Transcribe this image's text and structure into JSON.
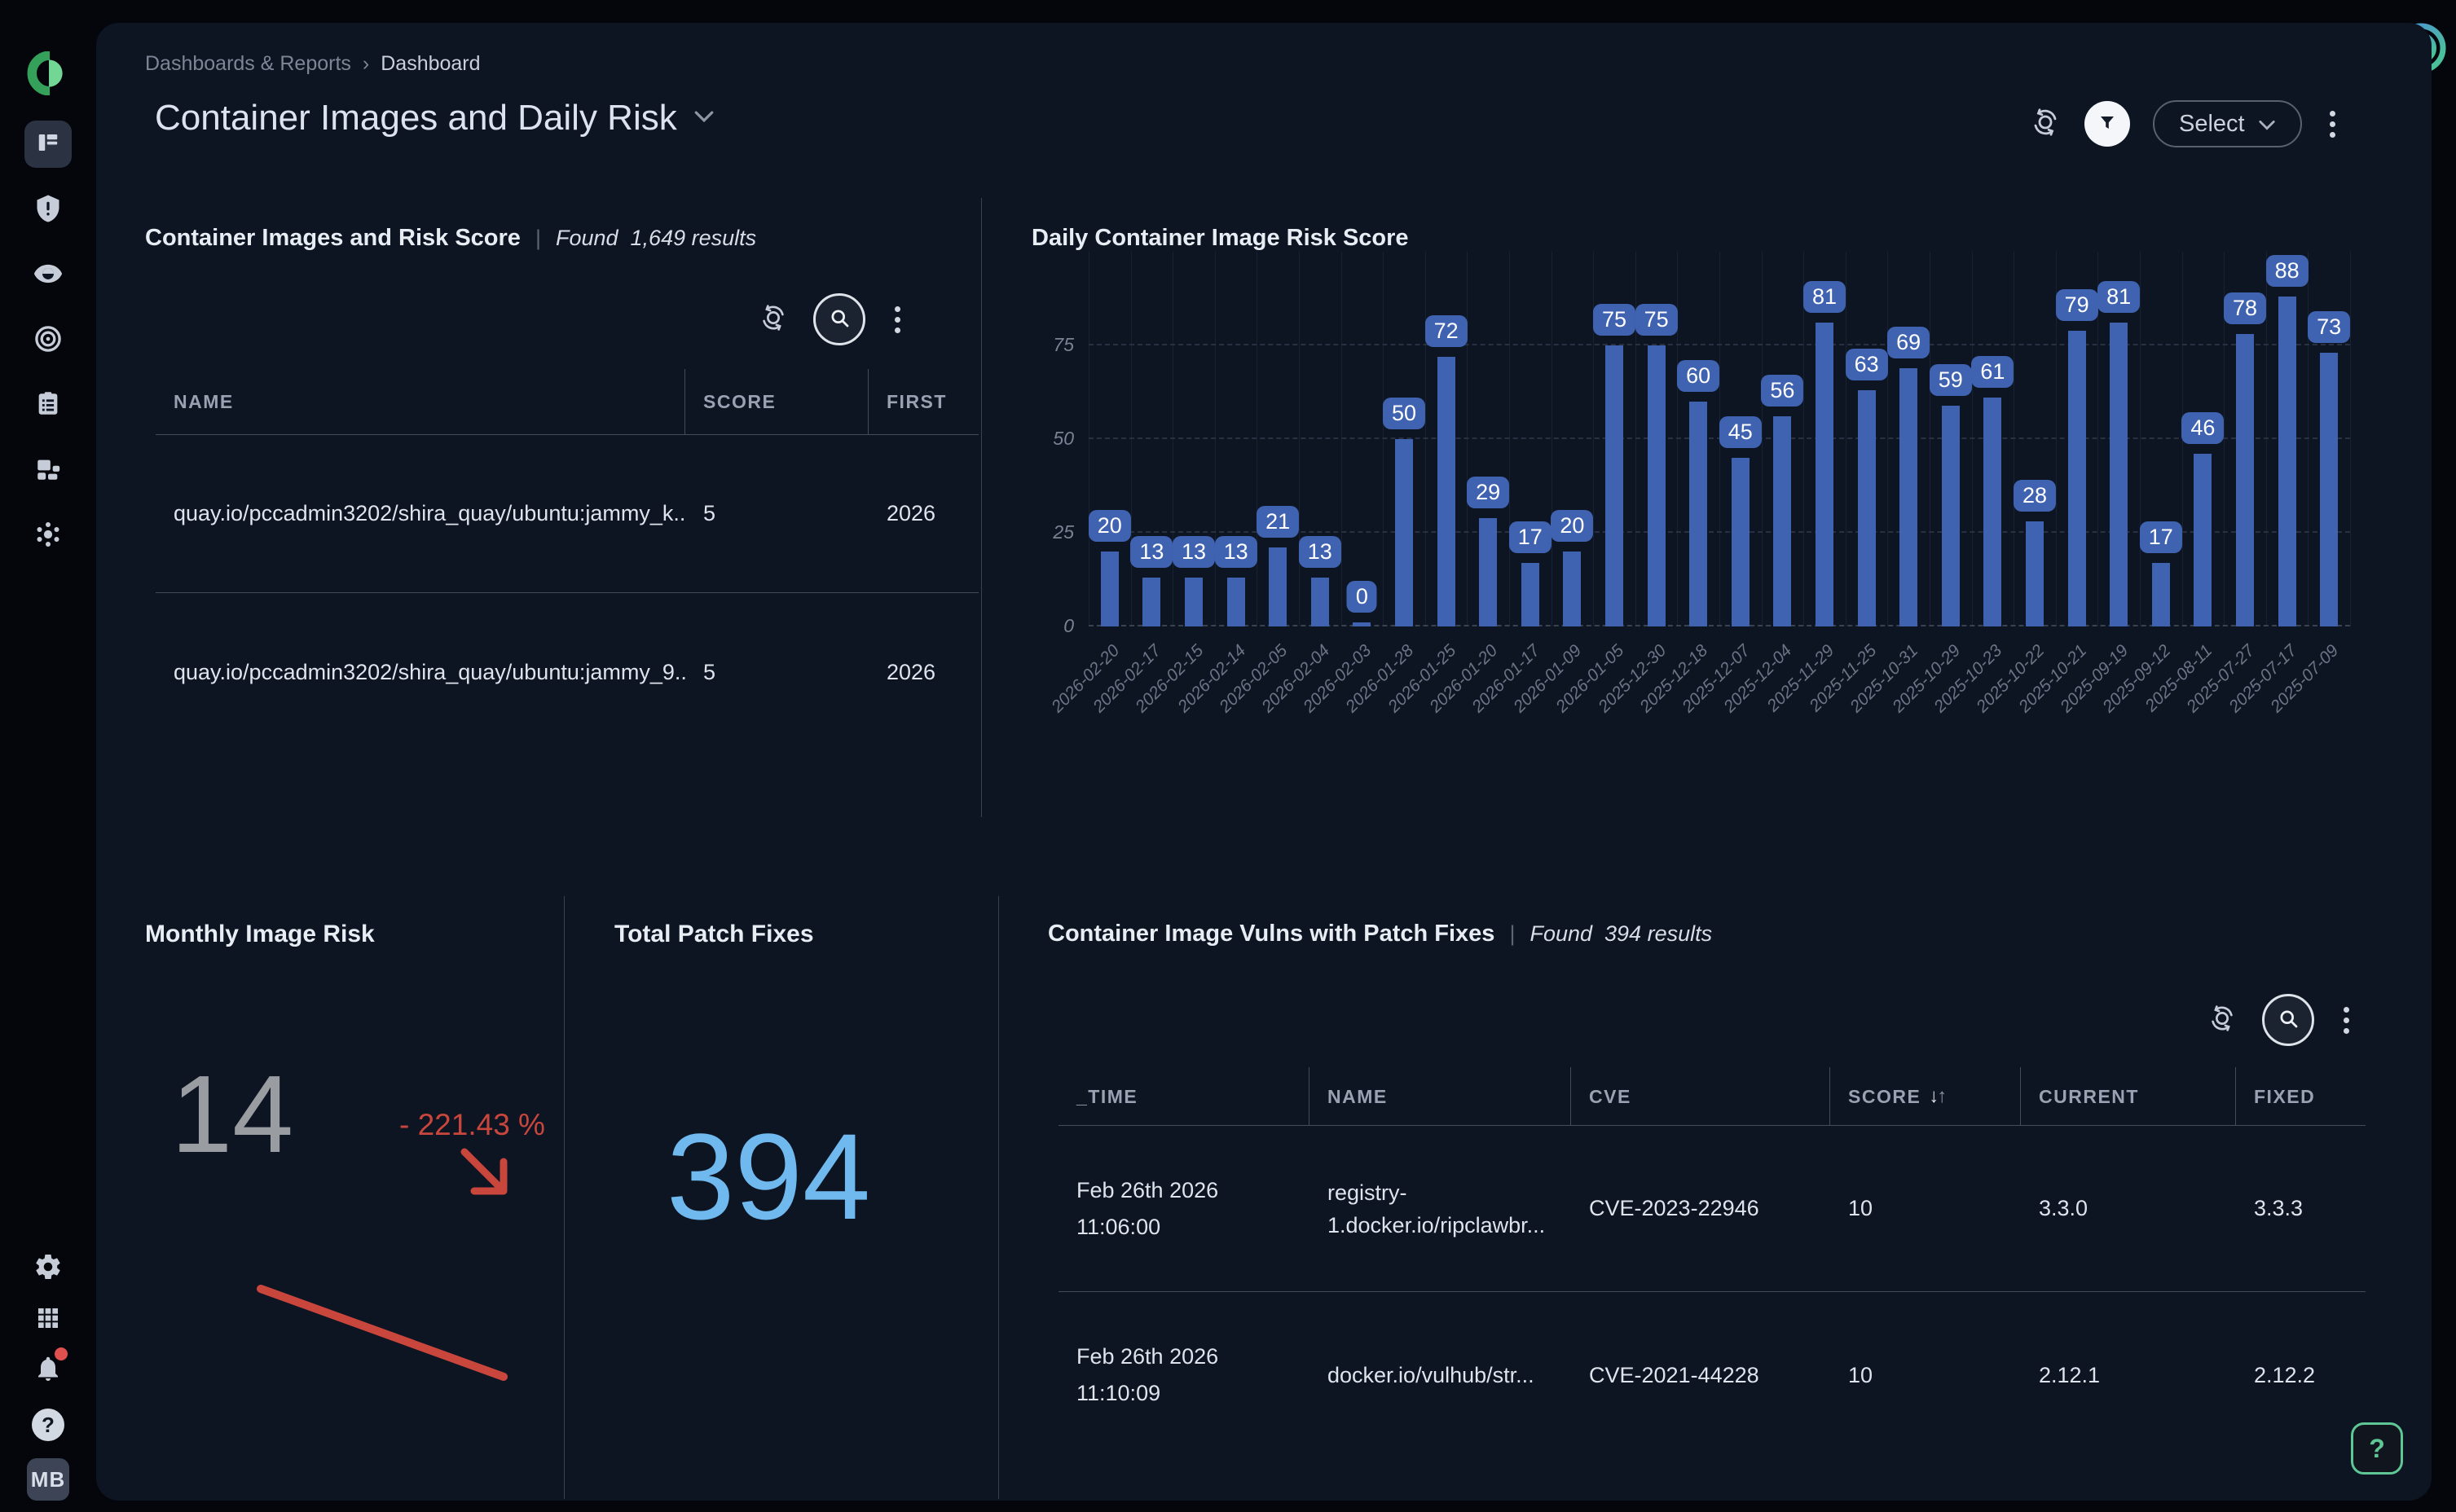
{
  "ui": {
    "pipe": "|",
    "crumb_sep": "›",
    "sort_desc": "↓",
    "sort_asc": "↑"
  },
  "app": {
    "breadcrumb": [
      "Dashboards & Reports",
      "Dashboard"
    ],
    "title": "Container Images and Daily Risk",
    "select_label": "Select",
    "avatar": "MB",
    "help_label": "?"
  },
  "colors": {
    "bar_blue": "#3f63b0",
    "total_blue": "#70b9ee",
    "delta_red": "#c9463d",
    "help_green": "#5fc795",
    "card_bg": "#0d1422"
  },
  "panel_images": {
    "title": "Container Images and Risk Score",
    "found_label": "Found",
    "results_value": "1,649",
    "results_suffix": "results",
    "columns": {
      "name": "NAME",
      "score": "SCORE",
      "first": "FIRST"
    },
    "rows": [
      {
        "name": "quay.io/pccadmin3202/shira_quay/ubuntu:jammy_k...",
        "score": "5",
        "first": "2026"
      },
      {
        "name": "quay.io/pccadmin3202/shira_quay/ubuntu:jammy_9...",
        "score": "5",
        "first": "2026"
      }
    ]
  },
  "chart_data": {
    "type": "bar",
    "title": "Daily Container Image Risk Score",
    "categories": [
      "2026-02-20",
      "2026-02-17",
      "2026-02-15",
      "2026-02-14",
      "2026-02-05",
      "2026-02-04",
      "2026-02-03",
      "2026-01-28",
      "2026-01-25",
      "2026-01-20",
      "2026-01-17",
      "2026-01-09",
      "2026-01-05",
      "2025-12-30",
      "2025-12-18",
      "2025-12-07",
      "2025-12-04",
      "2025-11-29",
      "2025-11-25",
      "2025-10-31",
      "2025-10-29",
      "2025-10-23",
      "2025-10-22",
      "2025-10-21",
      "2025-09-19",
      "2025-09-12",
      "2025-08-11",
      "2025-07-27",
      "2025-07-17",
      "2025-07-09"
    ],
    "values": [
      20,
      13,
      13,
      13,
      21,
      13,
      0,
      50,
      72,
      29,
      17,
      20,
      75,
      75,
      60,
      45,
      56,
      81,
      63,
      69,
      59,
      61,
      28,
      79,
      81,
      17,
      46,
      78,
      88,
      73
    ],
    "yticks": [
      0,
      25,
      50,
      75
    ],
    "ylim": [
      0,
      95
    ],
    "xlabel": "",
    "ylabel": "",
    "grid": true,
    "legend": false,
    "bar_color": "#3f63b0",
    "label_bg": "#3f63b0"
  },
  "panel_monthly": {
    "title": "Monthly Image Risk",
    "value": "14",
    "delta": "- 221.43 %",
    "trend": "down"
  },
  "panel_total": {
    "title": "Total Patch Fixes",
    "value": "394"
  },
  "panel_vulns": {
    "title": "Container Image Vulns with Patch Fixes",
    "found_label": "Found",
    "results_value": "394",
    "results_suffix": "results",
    "columns": {
      "time": "_TIME",
      "name": "NAME",
      "cve": "CVE",
      "score": "SCORE",
      "current": "CURRENT",
      "fixed": "FIXED"
    },
    "rows": [
      {
        "time_date": "Feb 26th 2026",
        "time_clock": "11:06:00",
        "name_line1": "registry-",
        "name_line2": "1.docker.io/ripclawbr...",
        "cve": "CVE-2023-22946",
        "score": "10",
        "current": "3.3.0",
        "fixed": "3.3.3"
      },
      {
        "time_date": "Feb 26th 2026",
        "time_clock": "11:10:09",
        "name_line1": "docker.io/vulhub/str...",
        "name_line2": "",
        "cve": "CVE-2021-44228",
        "score": "10",
        "current": "2.12.1",
        "fixed": "2.12.2"
      }
    ]
  }
}
